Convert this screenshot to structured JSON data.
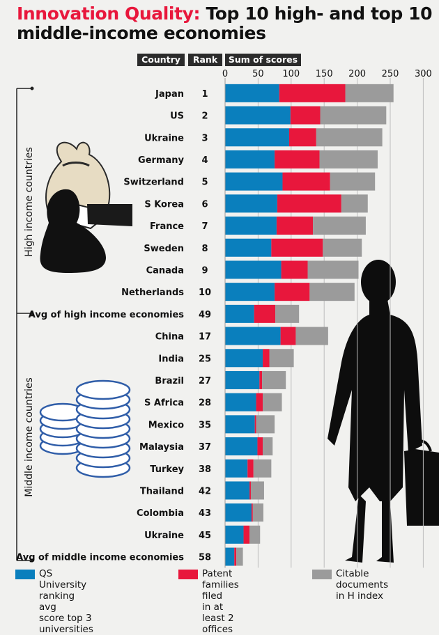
{
  "title": {
    "highlight": "Innovation Quality:",
    "line1": "Top 10 high- and top 10",
    "line2": "middle-income economies"
  },
  "headers": {
    "country": "Country",
    "rank": "Rank",
    "sum": "Sum of scores"
  },
  "group_labels": {
    "high": "High income  countries",
    "middle": "Middle income  countries"
  },
  "colors": {
    "qs": "#0a7fbd",
    "patent": "#e8173c",
    "citable": "#9b9b9b",
    "title_accent": "#e8173c"
  },
  "legend": [
    {
      "line1": "QS University ranking avg",
      "line2": "score top 3 universities",
      "color": "#0a7fbd"
    },
    {
      "line1": "Patent families filed",
      "line2": "in at least 2 offices",
      "color": "#e8173c"
    },
    {
      "line1": "Citable documents",
      "line2": "in H index",
      "color": "#9b9b9b"
    }
  ],
  "chart_data": {
    "type": "bar",
    "orientation": "horizontal",
    "stacked": true,
    "title": "Innovation Quality: Top 10 high- and top 10 middle-income economies",
    "xlim": [
      0,
      300
    ],
    "xticks": [
      0,
      50,
      100,
      150,
      200,
      250,
      300
    ],
    "series_names": [
      "QS University ranking avg score top 3 universities",
      "Patent families filed in at least 2 offices",
      "Citable documents in H index"
    ],
    "rows": [
      {
        "country": "Japan",
        "rank": "1",
        "qs": 82,
        "patent": 100,
        "citable": 73,
        "bold": false
      },
      {
        "country": "US",
        "rank": "2",
        "qs": 99,
        "patent": 45,
        "citable": 100,
        "bold": false
      },
      {
        "country": "Ukraine",
        "rank": "3",
        "qs": 97,
        "patent": 41,
        "citable": 100,
        "bold": false
      },
      {
        "country": "Germany",
        "rank": "4",
        "qs": 75,
        "patent": 68,
        "citable": 88,
        "bold": false
      },
      {
        "country": "Switzerland",
        "rank": "5",
        "qs": 87,
        "patent": 72,
        "citable": 68,
        "bold": false
      },
      {
        "country": "S Korea",
        "rank": "6",
        "qs": 79,
        "patent": 97,
        "citable": 40,
        "bold": false
      },
      {
        "country": "France",
        "rank": "7",
        "qs": 78,
        "patent": 55,
        "citable": 80,
        "bold": false
      },
      {
        "country": "Sweden",
        "rank": "8",
        "qs": 70,
        "patent": 78,
        "citable": 59,
        "bold": false
      },
      {
        "country": "Canada",
        "rank": "9",
        "qs": 85,
        "patent": 40,
        "citable": 77,
        "bold": false
      },
      {
        "country": "Netherlands",
        "rank": "10",
        "qs": 75,
        "patent": 53,
        "citable": 68,
        "bold": false
      },
      {
        "country": "Avg of high income economies",
        "rank": "49",
        "qs": 44,
        "patent": 32,
        "citable": 36,
        "bold": true
      },
      {
        "country": "China",
        "rank": "17",
        "qs": 84,
        "patent": 23,
        "citable": 49,
        "bold": false
      },
      {
        "country": "India",
        "rank": "25",
        "qs": 57,
        "patent": 10,
        "citable": 37,
        "bold": false
      },
      {
        "country": "Brazil",
        "rank": "27",
        "qs": 52,
        "patent": 4,
        "citable": 36,
        "bold": false
      },
      {
        "country": "S Africa",
        "rank": "28",
        "qs": 47,
        "patent": 10,
        "citable": 29,
        "bold": false
      },
      {
        "country": "Mexico",
        "rank": "35",
        "qs": 45,
        "patent": 2,
        "citable": 28,
        "bold": false
      },
      {
        "country": "Malaysia",
        "rank": "37",
        "qs": 49,
        "patent": 8,
        "citable": 15,
        "bold": false
      },
      {
        "country": "Turkey",
        "rank": "38",
        "qs": 34,
        "patent": 9,
        "citable": 27,
        "bold": false
      },
      {
        "country": "Thailand",
        "rank": "42",
        "qs": 37,
        "patent": 2,
        "citable": 20,
        "bold": false
      },
      {
        "country": "Colombia",
        "rank": "43",
        "qs": 40,
        "patent": 2,
        "citable": 16,
        "bold": false
      },
      {
        "country": "Ukraine",
        "rank": "45",
        "qs": 28,
        "patent": 9,
        "citable": 16,
        "bold": false
      },
      {
        "country": "Avg of middle income economies",
        "rank": "58",
        "qs": 14,
        "patent": 3,
        "citable": 10,
        "bold": true
      }
    ]
  }
}
